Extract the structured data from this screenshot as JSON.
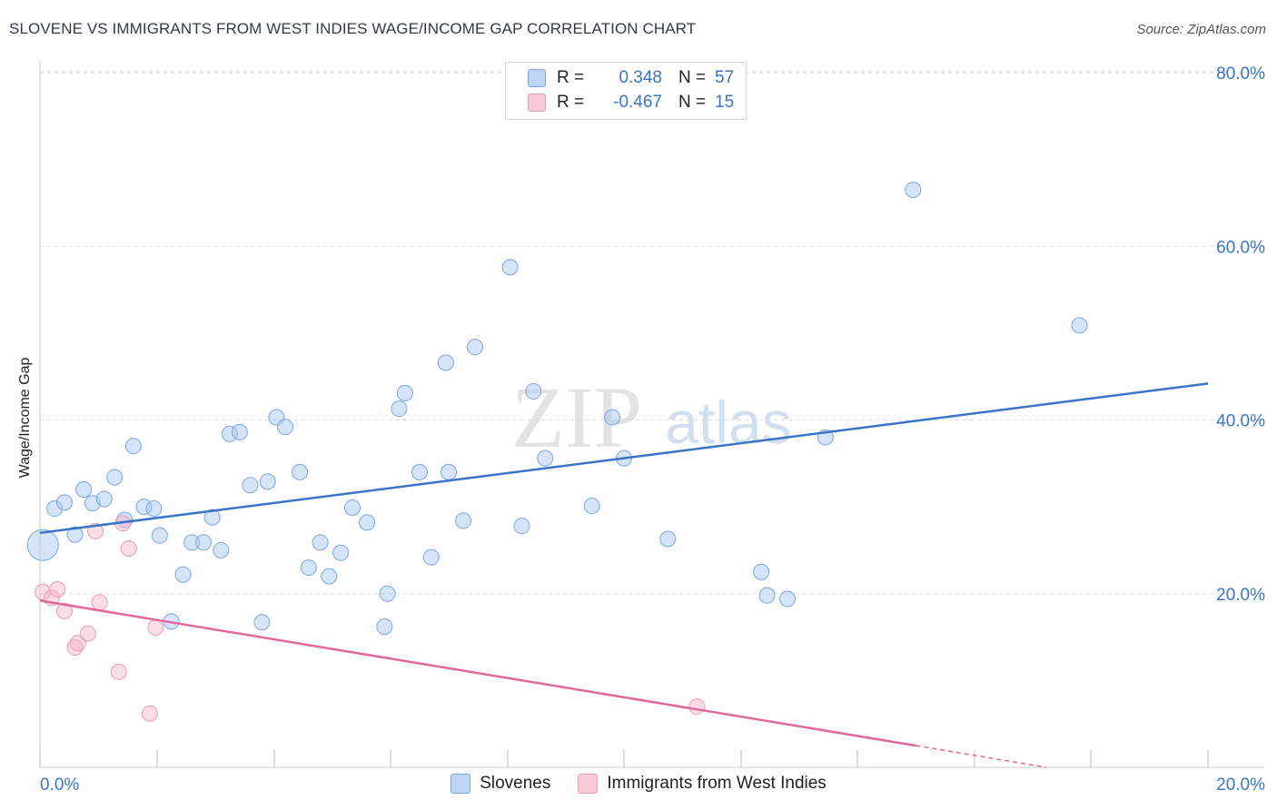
{
  "title": "SLOVENE VS IMMIGRANTS FROM WEST INDIES WAGE/INCOME GAP CORRELATION CHART",
  "source": "Source: ZipAtlas.com",
  "watermark": {
    "zip": "ZIP",
    "atlas": "atlas"
  },
  "colors": {
    "blue": "#3a74c8",
    "blue_fill": "rgba(163,196,240,0.45)",
    "blue_stroke": "#7aa6e0",
    "pink": "#e0689a",
    "pink_fill": "rgba(245,180,200,0.45)",
    "pink_stroke": "#ea9ab8",
    "grid": "#dddddd",
    "tick_label": "#3a74c8"
  },
  "legend": {
    "rows": [
      {
        "r_label": "R =",
        "r_value": "0.348",
        "n_label": "N =",
        "n_value": "57",
        "color": "blue"
      },
      {
        "r_label": "R =",
        "r_value": "-0.467",
        "n_label": "N =",
        "n_value": "15",
        "color": "pink"
      }
    ]
  },
  "bottom_legend": [
    "Slovenes",
    "Immigrants from West Indies"
  ],
  "chart_data": {
    "type": "scatter",
    "title": "SLOVENE VS IMMIGRANTS FROM WEST INDIES WAGE/INCOME GAP CORRELATION CHART",
    "xlabel": "",
    "ylabel": "Wage/Income Gap",
    "xlim": [
      0,
      20
    ],
    "ylim": [
      0,
      80
    ],
    "x_tick_labels": [
      "0.0%",
      "20.0%"
    ],
    "y_ticks": [
      20,
      40,
      60,
      80
    ],
    "y_tick_labels": [
      "20.0%",
      "40.0%",
      "60.0%",
      "80.0%"
    ],
    "x_minor_ticks": [
      0,
      2,
      4,
      6,
      8,
      10,
      12,
      14,
      16,
      18,
      20
    ],
    "series": [
      {
        "name": "Slovenes",
        "color": "blue",
        "r": 0.348,
        "n": 57,
        "trend": {
          "x0": 0,
          "y0": 27.0,
          "x1": 20,
          "y1": 44.2
        },
        "points": [
          {
            "x": 0.05,
            "y": 25.6,
            "big": true
          },
          {
            "x": 0.25,
            "y": 29.8
          },
          {
            "x": 0.42,
            "y": 30.5
          },
          {
            "x": 0.6,
            "y": 26.8
          },
          {
            "x": 0.75,
            "y": 32.0
          },
          {
            "x": 0.9,
            "y": 30.4
          },
          {
            "x": 1.1,
            "y": 30.9
          },
          {
            "x": 1.28,
            "y": 33.4
          },
          {
            "x": 1.45,
            "y": 28.5
          },
          {
            "x": 1.6,
            "y": 37.0
          },
          {
            "x": 1.78,
            "y": 30.0
          },
          {
            "x": 1.95,
            "y": 29.8
          },
          {
            "x": 2.05,
            "y": 26.7
          },
          {
            "x": 2.25,
            "y": 16.8
          },
          {
            "x": 2.45,
            "y": 22.2
          },
          {
            "x": 2.6,
            "y": 25.9
          },
          {
            "x": 2.8,
            "y": 25.9
          },
          {
            "x": 2.95,
            "y": 28.8
          },
          {
            "x": 3.1,
            "y": 25.0
          },
          {
            "x": 3.25,
            "y": 38.4
          },
          {
            "x": 3.42,
            "y": 38.6
          },
          {
            "x": 3.6,
            "y": 32.5
          },
          {
            "x": 3.8,
            "y": 16.7
          },
          {
            "x": 3.9,
            "y": 32.9
          },
          {
            "x": 4.05,
            "y": 40.3
          },
          {
            "x": 4.2,
            "y": 39.2
          },
          {
            "x": 4.45,
            "y": 34.0
          },
          {
            "x": 4.6,
            "y": 23.0
          },
          {
            "x": 4.8,
            "y": 25.9
          },
          {
            "x": 4.95,
            "y": 22.0
          },
          {
            "x": 5.15,
            "y": 24.7
          },
          {
            "x": 5.35,
            "y": 29.9
          },
          {
            "x": 5.6,
            "y": 28.2
          },
          {
            "x": 5.9,
            "y": 16.2
          },
          {
            "x": 5.95,
            "y": 20.0
          },
          {
            "x": 6.15,
            "y": 41.3
          },
          {
            "x": 6.25,
            "y": 43.1
          },
          {
            "x": 6.5,
            "y": 34.0
          },
          {
            "x": 6.7,
            "y": 24.2
          },
          {
            "x": 6.95,
            "y": 46.6
          },
          {
            "x": 7.0,
            "y": 34.0
          },
          {
            "x": 7.25,
            "y": 28.4
          },
          {
            "x": 7.45,
            "y": 48.4
          },
          {
            "x": 8.05,
            "y": 57.6
          },
          {
            "x": 8.25,
            "y": 27.8
          },
          {
            "x": 8.45,
            "y": 43.3
          },
          {
            "x": 8.65,
            "y": 35.6
          },
          {
            "x": 9.45,
            "y": 30.1
          },
          {
            "x": 9.8,
            "y": 40.3
          },
          {
            "x": 10.0,
            "y": 35.6
          },
          {
            "x": 10.75,
            "y": 26.3
          },
          {
            "x": 12.35,
            "y": 22.5
          },
          {
            "x": 12.45,
            "y": 19.8
          },
          {
            "x": 12.8,
            "y": 19.4
          },
          {
            "x": 13.45,
            "y": 38.0
          },
          {
            "x": 14.95,
            "y": 66.5
          },
          {
            "x": 17.8,
            "y": 50.9
          }
        ]
      },
      {
        "name": "Immigrants from West Indies",
        "color": "pink",
        "r": -0.467,
        "n": 15,
        "trend": {
          "x0": 0,
          "y0": 19.2,
          "x1": 15.0,
          "y1": 2.5
        },
        "trend_dashed": {
          "x0": 15.0,
          "y0": 2.5,
          "x1": 20,
          "y1": -3.1
        },
        "points": [
          {
            "x": 0.05,
            "y": 20.2
          },
          {
            "x": 0.2,
            "y": 19.5
          },
          {
            "x": 0.3,
            "y": 20.5
          },
          {
            "x": 0.42,
            "y": 18.0
          },
          {
            "x": 0.6,
            "y": 13.8
          },
          {
            "x": 0.65,
            "y": 14.3
          },
          {
            "x": 0.82,
            "y": 15.4
          },
          {
            "x": 0.95,
            "y": 27.2
          },
          {
            "x": 1.02,
            "y": 19.0
          },
          {
            "x": 1.35,
            "y": 11.0
          },
          {
            "x": 1.42,
            "y": 28.1
          },
          {
            "x": 1.52,
            "y": 25.2
          },
          {
            "x": 1.88,
            "y": 6.2
          },
          {
            "x": 1.98,
            "y": 16.1
          },
          {
            "x": 11.25,
            "y": 7.0
          }
        ]
      }
    ]
  }
}
